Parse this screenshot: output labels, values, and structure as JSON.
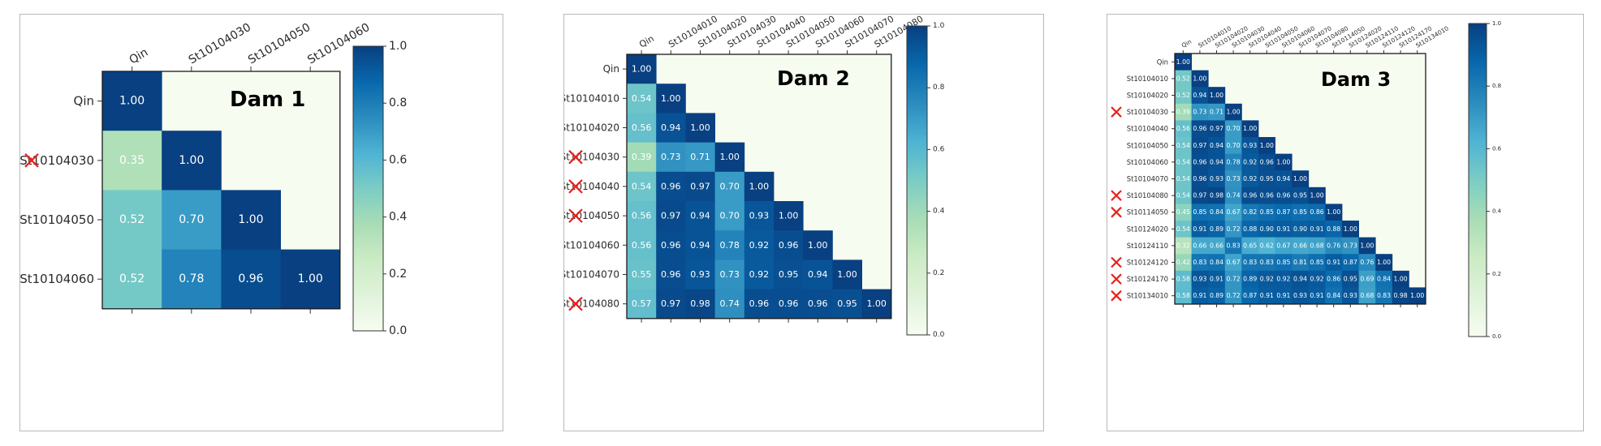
{
  "colors": {
    "colormap": [
      "#f7fcf0",
      "#e0f3db",
      "#ccebc5",
      "#a8ddb5",
      "#7bccc4",
      "#4eb3d3",
      "#2b8cbe",
      "#0868ac",
      "#084081"
    ],
    "reject_mark": "#e8201a",
    "panel_border": "#b9b9b9",
    "cell_text": "#ffffff",
    "label_text": "#2b2b2b"
  },
  "chart_data": [
    {
      "type": "heatmap",
      "title": "Dam 1",
      "labels": [
        "Qin",
        "St10104030",
        "St10104050",
        "St10104060"
      ],
      "marked": [
        "St10104030"
      ],
      "matrix": [
        [
          1.0
        ],
        [
          0.35,
          1.0
        ],
        [
          0.52,
          0.7,
          1.0
        ],
        [
          0.52,
          0.78,
          0.96,
          1.0
        ]
      ],
      "color_range": [
        0,
        1
      ],
      "colorbar_ticks": [
        "0.0",
        "0.2",
        "0.4",
        "0.6",
        "0.8",
        "1.0"
      ]
    },
    {
      "type": "heatmap",
      "title": "Dam 2",
      "labels": [
        "Qin",
        "St10104010",
        "St10104020",
        "St10104030",
        "St10104040",
        "St10104050",
        "St10104060",
        "St10104070",
        "St10104080"
      ],
      "marked": [
        "St10104030",
        "St10104040",
        "St10104050",
        "St10104080"
      ],
      "matrix": [
        [
          1.0
        ],
        [
          0.54,
          1.0
        ],
        [
          0.56,
          0.94,
          1.0
        ],
        [
          0.39,
          0.73,
          0.71,
          1.0
        ],
        [
          0.54,
          0.96,
          0.97,
          0.7,
          1.0
        ],
        [
          0.56,
          0.97,
          0.94,
          0.7,
          0.93,
          1.0
        ],
        [
          0.56,
          0.96,
          0.94,
          0.78,
          0.92,
          0.96,
          1.0
        ],
        [
          0.55,
          0.96,
          0.93,
          0.73,
          0.92,
          0.95,
          0.94,
          1.0
        ],
        [
          0.57,
          0.97,
          0.98,
          0.74,
          0.96,
          0.96,
          0.96,
          0.95,
          1.0
        ]
      ],
      "color_range": [
        0,
        1
      ],
      "colorbar_ticks": [
        "0.0",
        "0.2",
        "0.4",
        "0.6",
        "0.8",
        "1.0"
      ]
    },
    {
      "type": "heatmap",
      "title": "Dam 3",
      "labels": [
        "Qin",
        "St10104010",
        "St10104020",
        "St10104030",
        "St10104040",
        "St10104050",
        "St10104060",
        "St10104070",
        "St10104080",
        "St10114050",
        "St10124020",
        "St10124110",
        "St10124120",
        "St10124170",
        "St10134010"
      ],
      "marked": [
        "St10104030",
        "St10104080",
        "St10114050",
        "St10124120",
        "St10124170",
        "St10134010"
      ],
      "matrix": [
        [
          1.0
        ],
        [
          0.52,
          1.0
        ],
        [
          0.52,
          0.94,
          1.0
        ],
        [
          0.39,
          0.73,
          0.71,
          1.0
        ],
        [
          0.56,
          0.96,
          0.97,
          0.7,
          1.0
        ],
        [
          0.54,
          0.97,
          0.94,
          0.7,
          0.93,
          1.0
        ],
        [
          0.54,
          0.96,
          0.94,
          0.78,
          0.92,
          0.96,
          1.0
        ],
        [
          0.54,
          0.96,
          0.93,
          0.73,
          0.92,
          0.95,
          0.94,
          1.0
        ],
        [
          0.54,
          0.97,
          0.98,
          0.74,
          0.96,
          0.96,
          0.96,
          0.95,
          1.0
        ],
        [
          0.45,
          0.85,
          0.84,
          0.67,
          0.82,
          0.85,
          0.87,
          0.85,
          0.86,
          1.0
        ],
        [
          0.54,
          0.91,
          0.89,
          0.72,
          0.88,
          0.9,
          0.91,
          0.9,
          0.91,
          0.88,
          1.0
        ],
        [
          0.32,
          0.66,
          0.66,
          0.83,
          0.65,
          0.62,
          0.67,
          0.66,
          0.68,
          0.76,
          0.73,
          1.0
        ],
        [
          0.42,
          0.83,
          0.84,
          0.67,
          0.83,
          0.83,
          0.85,
          0.81,
          0.85,
          0.91,
          0.87,
          0.76,
          1.0
        ],
        [
          0.58,
          0.93,
          0.91,
          0.72,
          0.89,
          0.92,
          0.92,
          0.94,
          0.92,
          0.86,
          0.95,
          0.69,
          0.84,
          1.0
        ],
        [
          0.58,
          0.91,
          0.89,
          0.72,
          0.87,
          0.91,
          0.91,
          0.93,
          0.91,
          0.84,
          0.93,
          0.68,
          0.83,
          0.98,
          1.0
        ]
      ],
      "color_range": [
        0,
        1
      ],
      "colorbar_ticks": [
        "0.0",
        "0.2",
        "0.4",
        "0.6",
        "0.8",
        "1.0"
      ]
    }
  ]
}
